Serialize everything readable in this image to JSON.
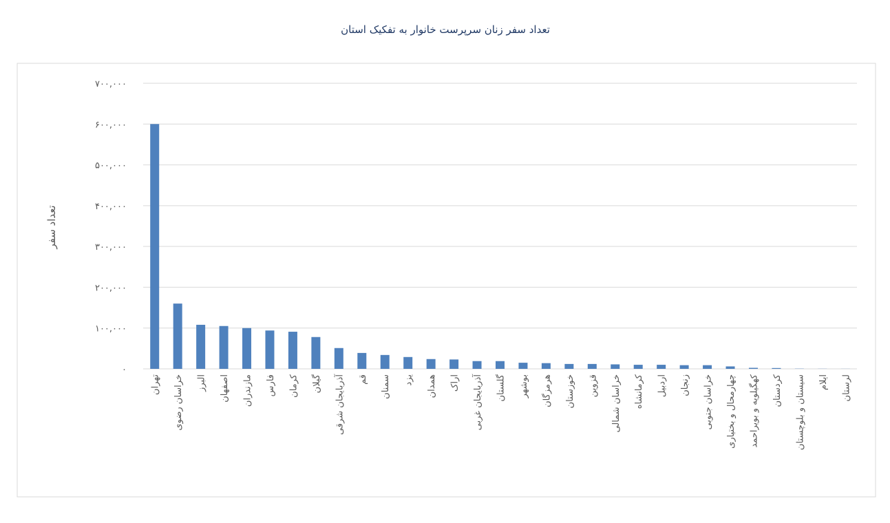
{
  "chart_data": {
    "type": "bar",
    "title": "تعداد سفر زنان سرپرست خانوار به تفکیک استان",
    "y_label": "تعداد سفر",
    "categories": [
      "تهران",
      "خراسان رضوی",
      "البرز",
      "اصفهان",
      "مازندران",
      "فارس",
      "کرمان",
      "گیلان",
      "آذربایجان شرقی",
      "قم",
      "سمنان",
      "یزد",
      "همدان",
      "اراک",
      "آذربایجان غربی",
      "گلستان",
      "بوشهر",
      "هرمزگان",
      "خوزستان",
      "قزوین",
      "خراسان شمالی",
      "کرمانشاه",
      "اردبیل",
      "زنجان",
      "خراسان جنوبی",
      "چهارمحال و بختیاری",
      "کهگیلویه و بویراحمد",
      "کردستان",
      "سیستان و بلوچستان",
      "ایلام",
      "لرستان"
    ],
    "values": [
      600000,
      160000,
      108000,
      105000,
      100000,
      94000,
      91000,
      78000,
      51000,
      39000,
      34000,
      29000,
      24000,
      23000,
      19000,
      19000,
      15000,
      14000,
      12000,
      12000,
      11000,
      10000,
      10000,
      9000,
      9000,
      6000,
      2500,
      2000,
      500,
      300,
      200
    ],
    "color": "#4f81bd",
    "ylim": [
      0,
      700000
    ],
    "yticks": [
      {
        "value": 0,
        "label": "۰"
      },
      {
        "value": 100000,
        "label": "۱۰۰,۰۰۰"
      },
      {
        "value": 200000,
        "label": "۲۰۰,۰۰۰"
      },
      {
        "value": 300000,
        "label": "۳۰۰,۰۰۰"
      },
      {
        "value": 400000,
        "label": "۴۰۰,۰۰۰"
      },
      {
        "value": 500000,
        "label": "۵۰۰,۰۰۰"
      },
      {
        "value": 600000,
        "label": "۶۰۰,۰۰۰"
      },
      {
        "value": 700000,
        "label": "۷۰۰,۰۰۰"
      }
    ],
    "grid": true
  }
}
